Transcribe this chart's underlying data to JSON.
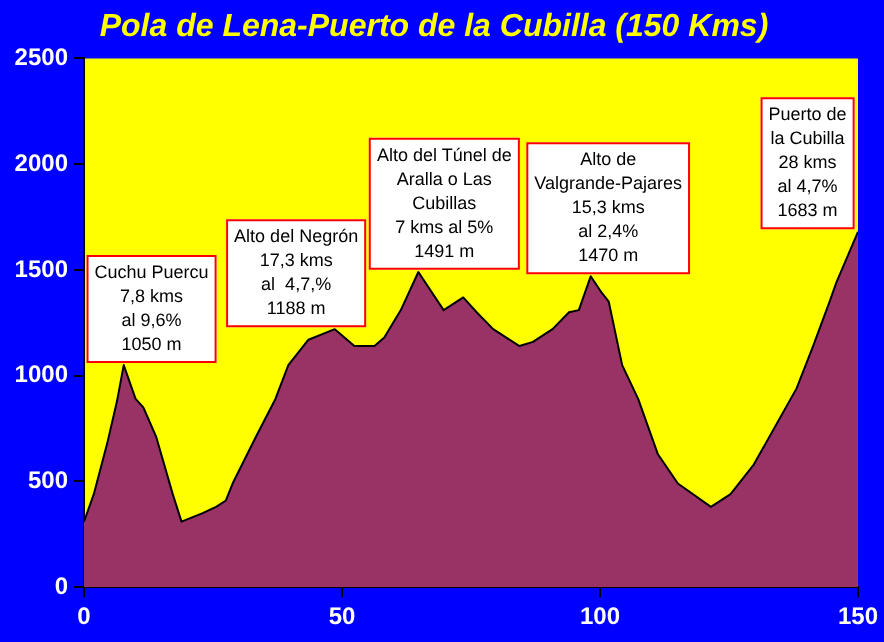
{
  "chart_data": {
    "type": "area",
    "title": "Pola de Lena-Puerto de la Cubilla (150 Kms)",
    "x": [
      0,
      1.9,
      4.5,
      6.4,
      7.7,
      10,
      11.5,
      14,
      17.2,
      18.9,
      23,
      25.6,
      27.5,
      28.8,
      33.3,
      37.1,
      39.6,
      43.5,
      48.6,
      52.4,
      56.3,
      58.2,
      61.4,
      64.8,
      69.7,
      73.5,
      76.1,
      79.3,
      84.4,
      87,
      90.8,
      94,
      95.9,
      98.2,
      100.4,
      101.7,
      104.3,
      107.4,
      111.2,
      115.1,
      121.5,
      125.3,
      129.8,
      134.2,
      138.1,
      141.3,
      144.5,
      145.8,
      150
    ],
    "series": [
      {
        "color": "#993366",
        "values": [
          310,
          440,
          680,
          880,
          1050,
          890,
          850,
          710,
          440,
          310,
          350,
          380,
          410,
          490,
          710,
          890,
          1050,
          1170,
          1220,
          1140,
          1140,
          1180,
          1310,
          1490,
          1310,
          1370,
          1300,
          1220,
          1140,
          1160,
          1220,
          1300,
          1310,
          1470,
          1390,
          1350,
          1050,
          890,
          630,
          490,
          380,
          440,
          580,
          770,
          940,
          1140,
          1350,
          1440,
          1680
        ]
      }
    ],
    "xlim": [
      0,
      150
    ],
    "xticks": [
      0,
      50,
      100,
      150
    ],
    "ylim": [
      0,
      2500
    ],
    "yticks": [
      0,
      500,
      1000,
      1500,
      2000,
      2500
    ],
    "annotations": [
      {
        "text": "Cuchu Puercu\n7,8 kms\nal 9,6%\n1050 m",
        "x": 7.7,
        "y": 1050
      },
      {
        "text": "Alto del Negrón\n17,3 kms\nal  4,7,%\n1188 m",
        "x": 48.6,
        "y": 1220
      },
      {
        "text": "Alto del Túnel de\nAralla o Las\nCubillas\n7 kms al 5%\n1491 m",
        "x": 64.8,
        "y": 1491
      },
      {
        "text": "Alto de\nValgrande-Pajares\n15,3 kms\nal 2,4%\n1470 m",
        "x": 98.2,
        "y": 1470
      },
      {
        "text": "Puerto de\nla Cubilla\n28 kms\nal 4,7%\n1683 m",
        "x": 150,
        "y": 1683
      }
    ]
  }
}
